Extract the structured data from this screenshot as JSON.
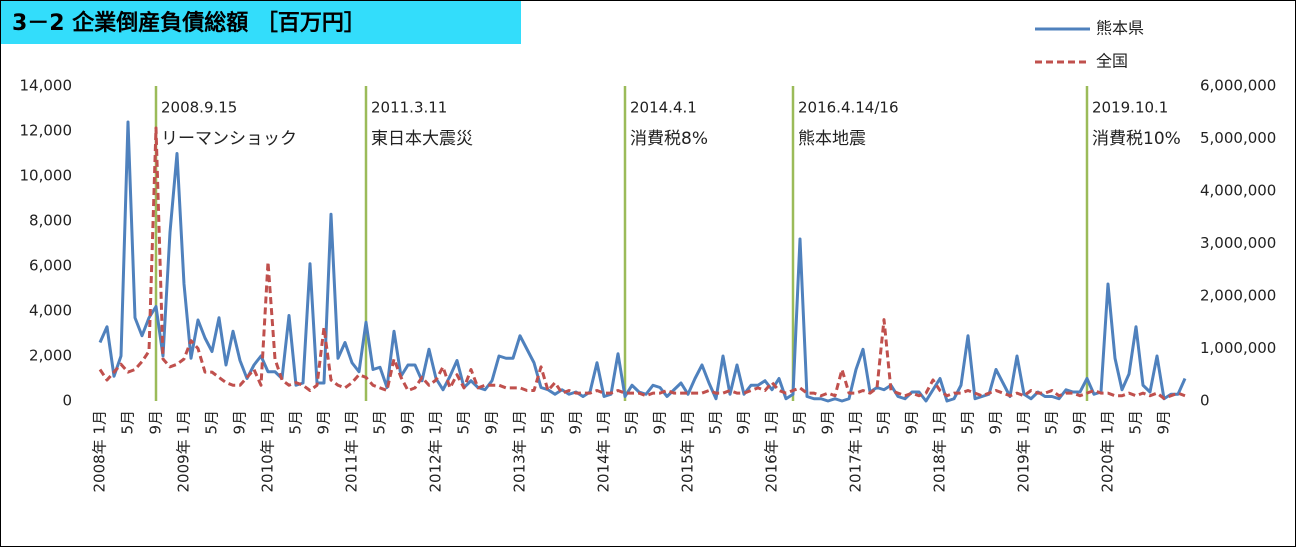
{
  "chart_data": {
    "type": "line",
    "title": "3－2 企業倒産負債総額 ［百万円］",
    "categories": [
      "2008年 1月",
      null,
      null,
      null,
      "5月",
      null,
      null,
      null,
      "9月",
      null,
      null,
      null,
      "2009年 1月",
      null,
      null,
      null,
      "5月",
      null,
      null,
      null,
      "9月",
      null,
      null,
      null,
      "2010年 1月",
      null,
      null,
      null,
      "5月",
      null,
      null,
      null,
      "9月",
      null,
      null,
      null,
      "2011年 1月",
      null,
      null,
      null,
      "5月",
      null,
      null,
      null,
      "9月",
      null,
      null,
      null,
      "2012年 1月",
      null,
      null,
      null,
      "5月",
      null,
      null,
      null,
      "9月",
      null,
      null,
      null,
      "2013年 1月",
      null,
      null,
      null,
      "5月",
      null,
      null,
      null,
      "9月",
      null,
      null,
      null,
      "2014年 1月",
      null,
      null,
      null,
      "5月",
      null,
      null,
      null,
      "9月",
      null,
      null,
      null,
      "2015年 1月",
      null,
      null,
      null,
      "5月",
      null,
      null,
      null,
      "9月",
      null,
      null,
      null,
      "2016年 1月",
      null,
      null,
      null,
      "5月",
      null,
      null,
      null,
      "9月",
      null,
      null,
      null,
      "2017年 1月",
      null,
      null,
      null,
      "5月",
      null,
      null,
      null,
      "9月",
      null,
      null,
      null,
      "2018年 1月",
      null,
      null,
      null,
      "5月",
      null,
      null,
      null,
      "9月",
      null,
      null,
      null,
      "2019年 1月",
      null,
      null,
      null,
      "5月",
      null,
      null,
      null,
      "9月",
      null,
      null,
      null,
      "2020年 1月",
      null,
      null,
      null,
      "5月",
      null,
      null,
      null,
      "9月",
      null,
      null,
      null
    ],
    "series": [
      {
        "name": "熊本県",
        "color": "#4f81bd",
        "dash": false,
        "values": [
          2600,
          3300,
          1100,
          2000,
          12400,
          3700,
          2900,
          3700,
          4200,
          2000,
          7500,
          11000,
          5200,
          1900,
          3600,
          2800,
          2200,
          3700,
          1600,
          3100,
          1800,
          1000,
          1600,
          2000,
          1300,
          1300,
          1000,
          3800,
          700,
          800,
          6100,
          800,
          800,
          8300,
          1900,
          2600,
          1700,
          1300,
          3500,
          1400,
          1500,
          600,
          3100,
          1100,
          1600,
          1600,
          900,
          2300,
          1000,
          500,
          1100,
          1800,
          600,
          900,
          600,
          500,
          900,
          2000,
          1900,
          1900,
          2900,
          2300,
          1700,
          600,
          500,
          300,
          500,
          300,
          400,
          200,
          400,
          1700,
          200,
          300,
          2100,
          200,
          700,
          400,
          300,
          700,
          600,
          200,
          500,
          800,
          300,
          1000,
          1600,
          800,
          100,
          2000,
          300,
          1600,
          300,
          700,
          700,
          900,
          500,
          1000,
          100,
          300,
          7200,
          200,
          100,
          100,
          0,
          100,
          0,
          100,
          1400,
          2300,
          400,
          600,
          500,
          700,
          200,
          100,
          400,
          400,
          0,
          500,
          1000,
          0,
          100,
          700,
          2900,
          100,
          200,
          300,
          1400,
          800,
          200,
          2000,
          300,
          100,
          400,
          200,
          200,
          100,
          500,
          400,
          400,
          1000,
          300,
          400,
          5200,
          1900,
          500,
          1200,
          3300,
          700,
          400,
          2000,
          100,
          300,
          300,
          1000
        ]
      },
      {
        "name": "全国",
        "color": "#c0504d",
        "dash": true,
        "axis": "y2",
        "values": [
          600000,
          400000,
          550000,
          700000,
          550000,
          600000,
          750000,
          950000,
          5200000,
          800000,
          650000,
          700000,
          800000,
          1150000,
          1000000,
          550000,
          550000,
          450000,
          350000,
          300000,
          300000,
          450000,
          600000,
          300000,
          2650000,
          800000,
          400000,
          300000,
          350000,
          300000,
          200000,
          300000,
          1400000,
          400000,
          300000,
          250000,
          350000,
          500000,
          450000,
          300000,
          250000,
          200000,
          800000,
          450000,
          200000,
          250000,
          450000,
          300000,
          400000,
          650000,
          250000,
          500000,
          250000,
          600000,
          250000,
          300000,
          300000,
          300000,
          250000,
          250000,
          250000,
          200000,
          200000,
          650000,
          200000,
          350000,
          150000,
          200000,
          150000,
          150000,
          150000,
          200000,
          150000,
          150000,
          200000,
          150000,
          150000,
          150000,
          100000,
          150000,
          150000,
          200000,
          150000,
          150000,
          150000,
          150000,
          150000,
          200000,
          150000,
          150000,
          200000,
          150000,
          150000,
          200000,
          250000,
          200000,
          350000,
          200000,
          150000,
          200000,
          250000,
          150000,
          150000,
          100000,
          150000,
          100000,
          600000,
          150000,
          150000,
          200000,
          150000,
          250000,
          1550000,
          200000,
          150000,
          100000,
          150000,
          100000,
          150000,
          400000,
          200000,
          100000,
          150000,
          150000,
          200000,
          150000,
          100000,
          150000,
          200000,
          150000,
          100000,
          150000,
          100000,
          200000,
          150000,
          150000,
          200000,
          100000,
          150000,
          150000,
          100000,
          150000,
          200000,
          150000,
          150000,
          100000,
          100000,
          150000,
          100000,
          150000,
          100000,
          150000,
          50000,
          100000,
          150000,
          100000
        ]
      }
    ],
    "ylim": [
      0,
      14000
    ],
    "yticks": [
      0,
      {
        "value": 2000,
        "label": "2,000"
      },
      {
        "value": 4000,
        "label": "4,000"
      },
      {
        "value": 6000,
        "label": "6,000"
      },
      {
        "value": 8000,
        "label": "8,000"
      },
      {
        "value": 10000,
        "label": "10,000"
      },
      {
        "value": 12000,
        "label": "12,000"
      },
      {
        "value": 14000,
        "label": "14,000"
      }
    ],
    "y2lim": [
      0,
      6000000
    ],
    "y2ticks": [
      0,
      {
        "value": 1000000,
        "label": "1,000,000"
      },
      {
        "value": 2000000,
        "label": "2,000,000"
      },
      {
        "value": 3000000,
        "label": "3,000,000"
      },
      {
        "value": 4000000,
        "label": "4,000,000"
      },
      {
        "value": 5000000,
        "label": "5,000,000"
      },
      {
        "value": 6000000,
        "label": "6,000,000"
      }
    ],
    "annotations": [
      {
        "label": "2008.9.15",
        "text": "リーマンショック"
      },
      {
        "label": "2011.3.11",
        "text": "東日本大震災"
      },
      {
        "label": "2014.4.1",
        "text": "消費税8%"
      },
      {
        "label": "2016.4.14/16",
        "text": "熊本地震"
      },
      {
        "label": "2019.10.1",
        "text": "消費税10%"
      }
    ],
    "event_color": "#9bbb59"
  }
}
